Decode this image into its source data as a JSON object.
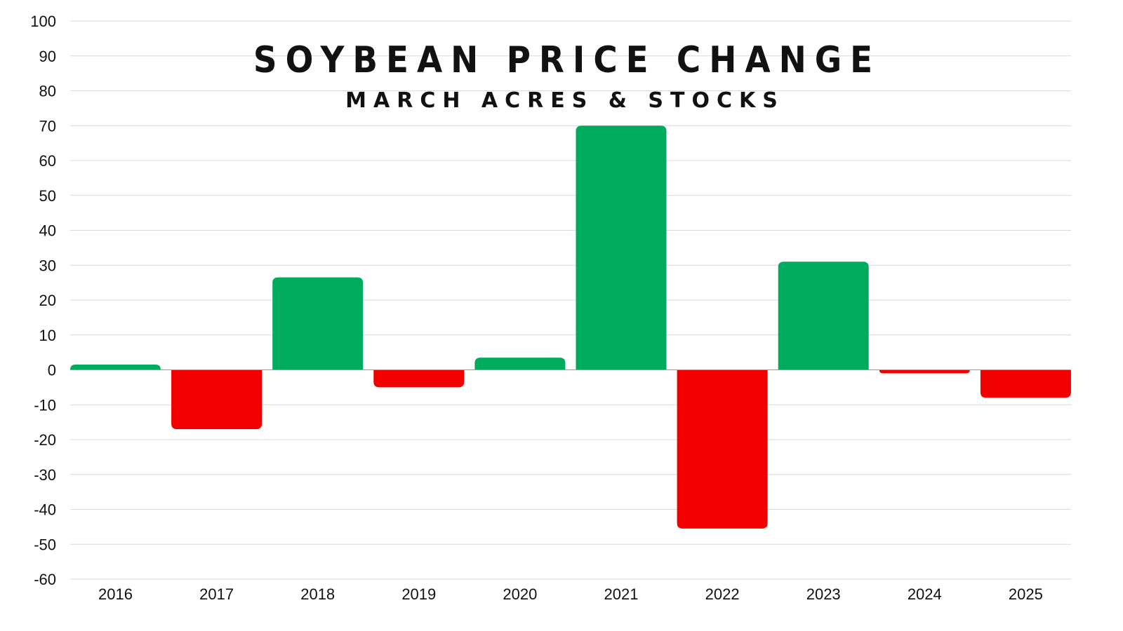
{
  "chart_data": {
    "type": "bar",
    "title": "SOYBEAN PRICE CHANGE",
    "subtitle": "MARCH ACRES & STOCKS",
    "xlabel": "",
    "ylabel": "",
    "categories": [
      "2016",
      "2017",
      "2018",
      "2019",
      "2020",
      "2021",
      "2022",
      "2023",
      "2024",
      "2025"
    ],
    "values": [
      1.5,
      -17,
      26.5,
      -5,
      3.5,
      70,
      -45.5,
      31,
      -1,
      -8
    ],
    "ylim": [
      -60,
      100
    ],
    "yticks": [
      100,
      90,
      80,
      70,
      60,
      50,
      40,
      30,
      20,
      10,
      0,
      -10,
      -20,
      -30,
      -40,
      -50,
      -60
    ],
    "grid": true,
    "legend": "none",
    "colors": {
      "positive": "#00ab5e",
      "negative": "#f20000"
    }
  }
}
